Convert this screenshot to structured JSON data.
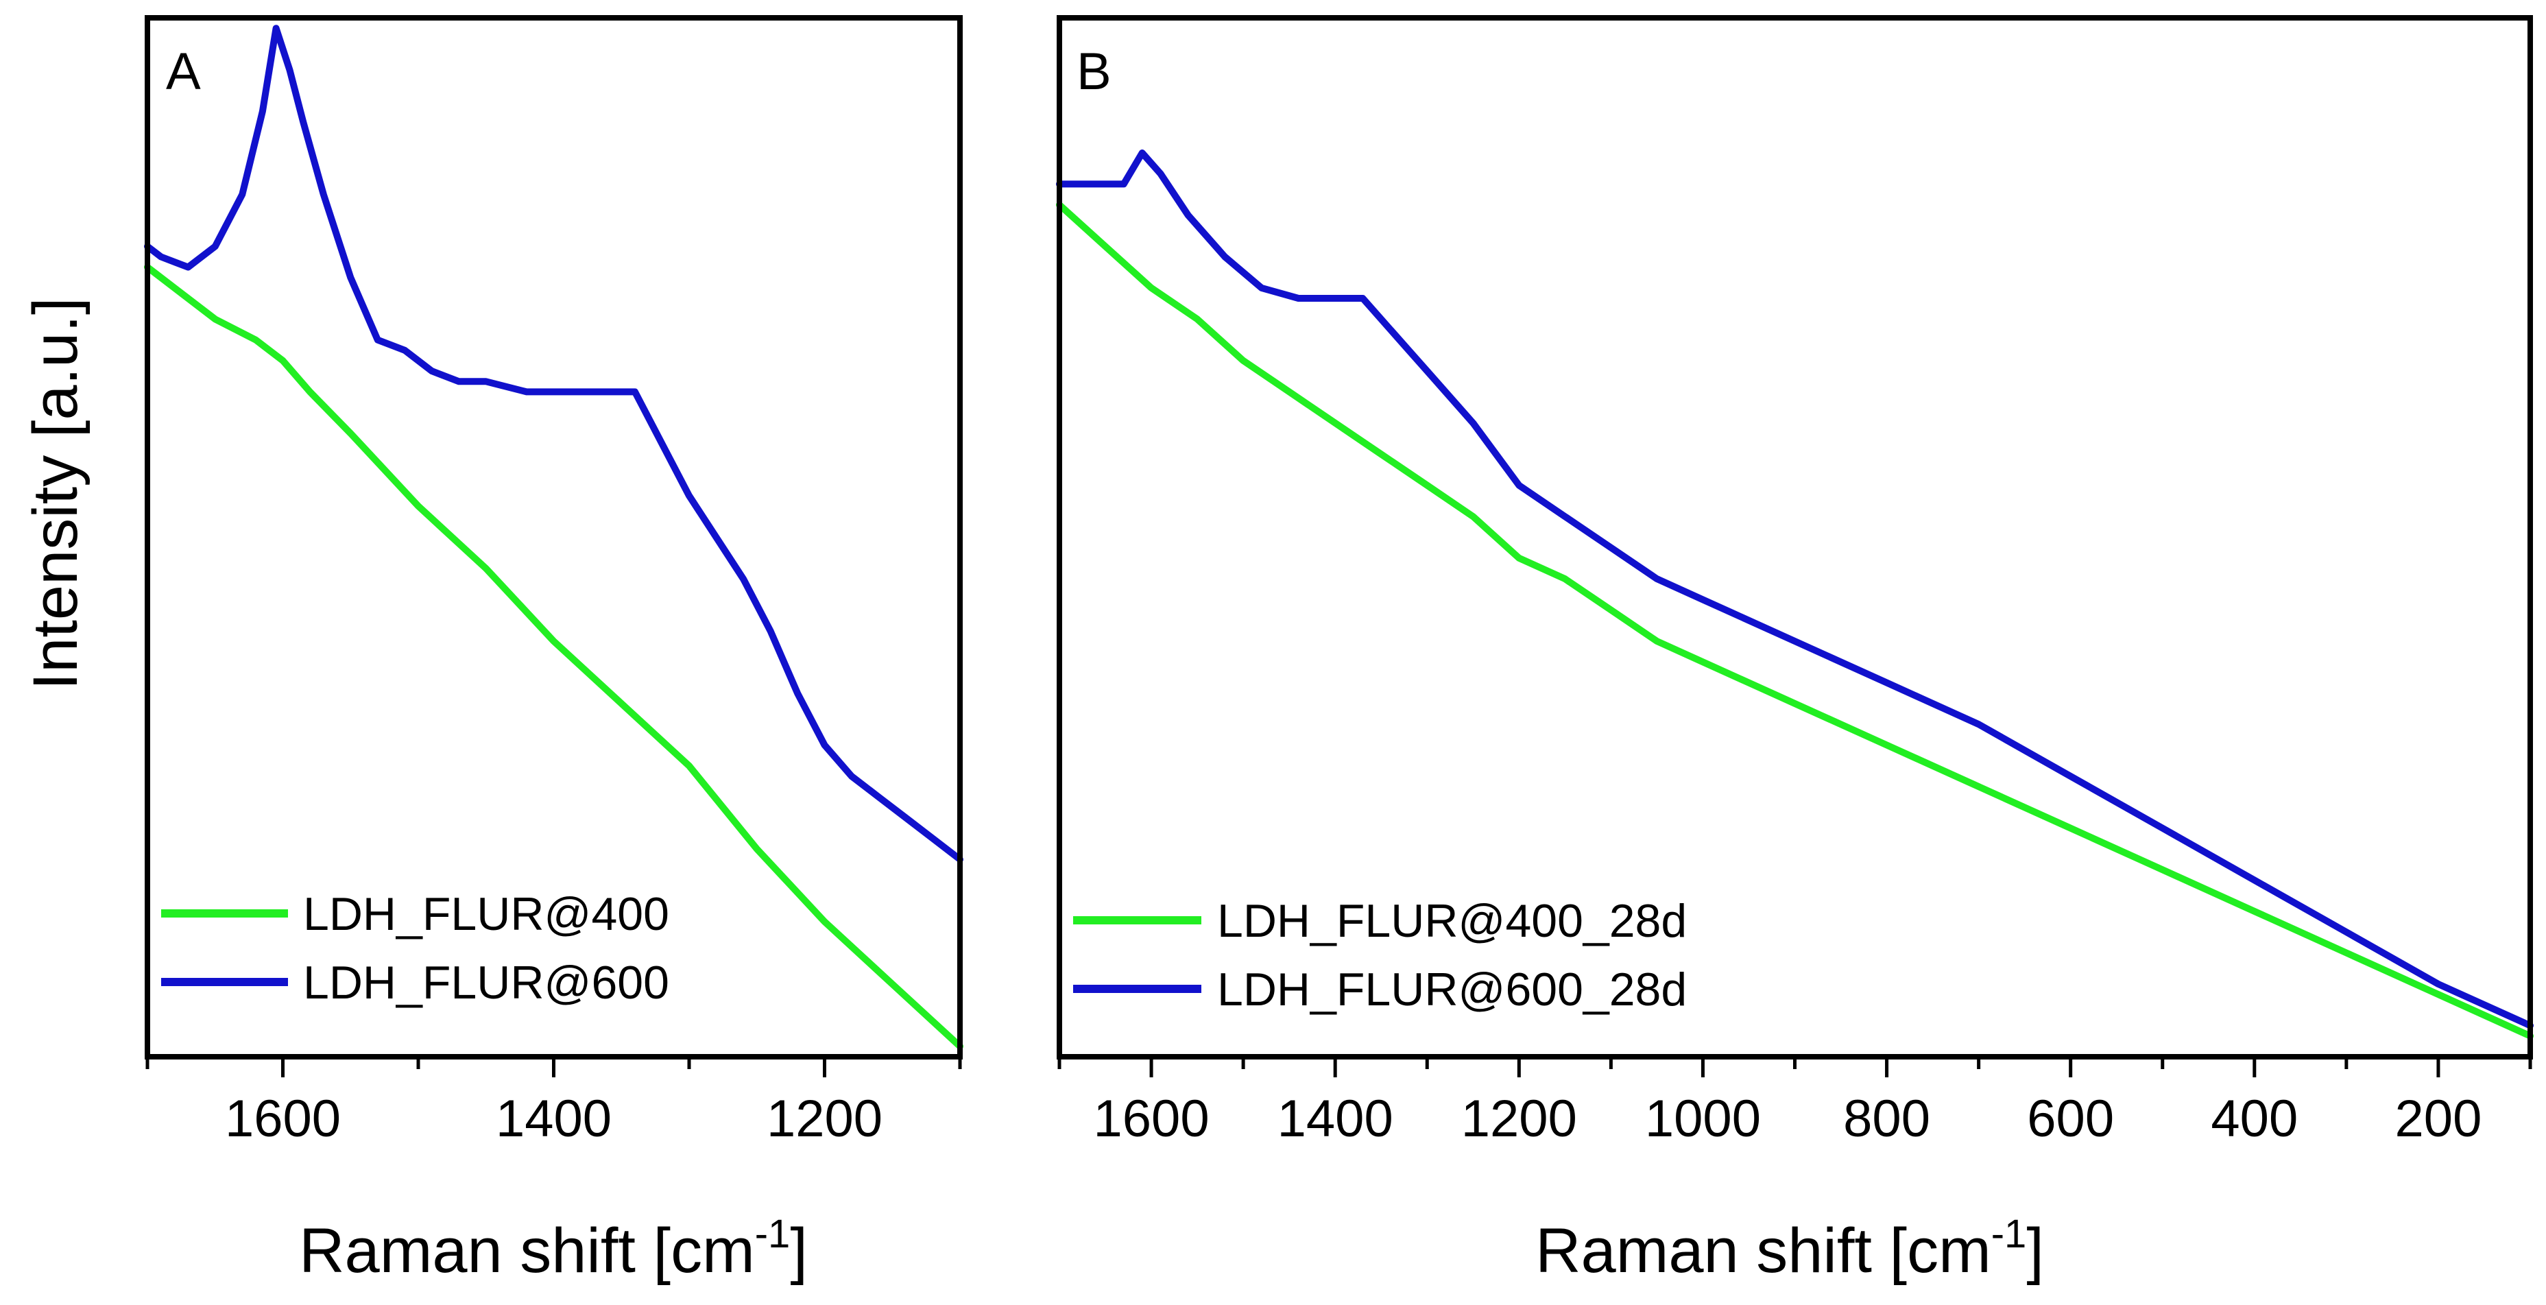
{
  "ylabel": "Intensity [a.u.]",
  "colors": {
    "green": "#22ee22",
    "blue": "#1111cc"
  },
  "chart_data": [
    {
      "panel": "A",
      "type": "line",
      "xlabel_main": "Raman shift [cm",
      "xlabel_sup": "-1",
      "xlabel_end": "]",
      "ylabel": "Intensity [a.u.]",
      "xlim": [
        1700,
        1100
      ],
      "ylim": [
        0,
        100
      ],
      "major_ticks": [
        1600,
        1400,
        1200
      ],
      "minor_ticks": [
        1700,
        1500,
        1300,
        1100
      ],
      "tick_labels": [
        "1600",
        "1400",
        "1200"
      ],
      "legend_position": "bottom-left",
      "series": [
        {
          "name": "LDH_FLUR@400",
          "color": "#22ee22",
          "x": [
            1700,
            1650,
            1620,
            1600,
            1580,
            1550,
            1500,
            1450,
            1400,
            1350,
            1300,
            1250,
            1200,
            1150,
            1100
          ],
          "y": [
            76,
            71,
            69,
            67,
            64,
            60,
            53,
            47,
            40,
            34,
            28,
            20,
            13,
            7,
            1
          ]
        },
        {
          "name": "LDH_FLUR@600",
          "color": "#1111cc",
          "x": [
            1700,
            1690,
            1670,
            1650,
            1630,
            1615,
            1605,
            1595,
            1585,
            1570,
            1550,
            1530,
            1510,
            1490,
            1470,
            1450,
            1420,
            1400,
            1380,
            1360,
            1340,
            1320,
            1300,
            1280,
            1260,
            1240,
            1220,
            1200,
            1180,
            1160,
            1140,
            1120,
            1100
          ],
          "y": [
            78,
            77,
            76,
            78,
            83,
            91,
            99,
            95,
            90,
            83,
            75,
            69,
            68,
            66,
            65,
            65,
            64,
            64,
            64,
            64,
            64,
            59,
            54,
            50,
            46,
            41,
            35,
            30,
            27,
            25,
            23,
            21,
            19
          ]
        }
      ]
    },
    {
      "panel": "B",
      "type": "line",
      "xlabel_main": "Raman shift [cm",
      "xlabel_sup": "-1",
      "xlabel_end": "]",
      "ylabel": "Intensity [a.u.]",
      "xlim": [
        1700,
        100
      ],
      "ylim": [
        0,
        100
      ],
      "major_ticks": [
        1600,
        1400,
        1200,
        1000,
        800,
        600,
        400,
        200
      ],
      "minor_ticks": [
        1700,
        1500,
        1300,
        1100,
        900,
        700,
        500,
        300,
        100
      ],
      "tick_labels": [
        "1600",
        "1400",
        "1200",
        "1000",
        "800",
        "600",
        "400",
        "200"
      ],
      "legend_position": "bottom-left",
      "series": [
        {
          "name": "LDH_FLUR@400_28d",
          "color": "#22ee22",
          "x": [
            1700,
            1650,
            1600,
            1550,
            1500,
            1450,
            1400,
            1350,
            1300,
            1250,
            1200,
            1150,
            1100,
            1050,
            1000,
            900,
            800,
            700,
            600,
            500,
            400,
            300,
            200,
            100
          ],
          "y": [
            82,
            78,
            74,
            71,
            67,
            64,
            61,
            58,
            55,
            52,
            48,
            46,
            43,
            40,
            38,
            34,
            30,
            26,
            22,
            18,
            14,
            10,
            6,
            2
          ]
        },
        {
          "name": "LDH_FLUR@600_28d",
          "color": "#1111cc",
          "x": [
            1700,
            1660,
            1630,
            1610,
            1590,
            1560,
            1520,
            1480,
            1440,
            1400,
            1370,
            1340,
            1300,
            1250,
            1200,
            1150,
            1100,
            1050,
            1000,
            900,
            800,
            700,
            600,
            500,
            400,
            300,
            200,
            100
          ],
          "y": [
            84,
            84,
            84,
            87,
            85,
            81,
            77,
            74,
            73,
            73,
            73,
            70,
            66,
            61,
            55,
            52,
            49,
            46,
            44,
            40,
            36,
            32,
            27,
            22,
            17,
            12,
            7,
            3
          ]
        }
      ]
    }
  ]
}
